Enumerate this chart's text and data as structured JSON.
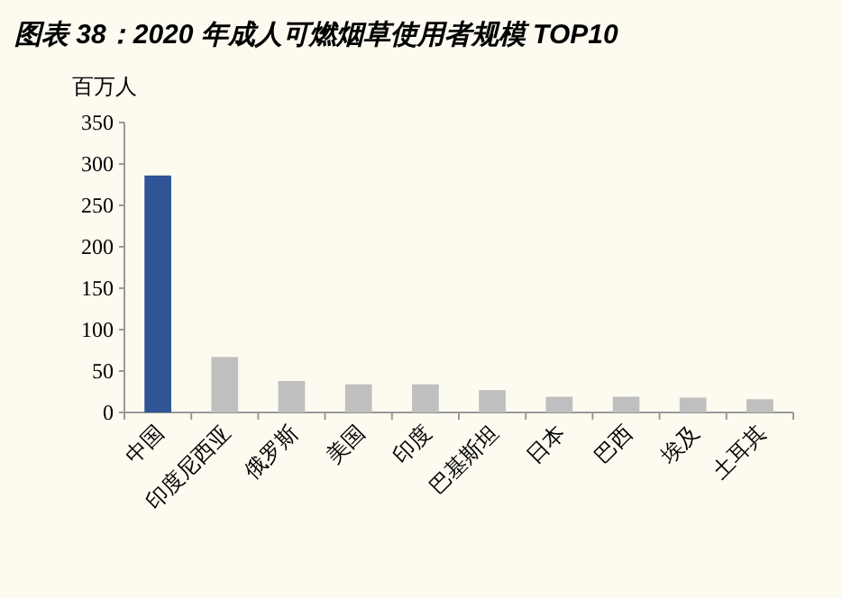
{
  "chart_data": {
    "type": "bar",
    "title": "图表 38：2020 年成人可燃烟草使用者规模 TOP10",
    "ylabel": "百万人",
    "categories": [
      "中国",
      "印度尼西亚",
      "俄罗斯",
      "美国",
      "印度",
      "巴基斯坦",
      "日本",
      "巴西",
      "埃及",
      "土耳其"
    ],
    "values": [
      286,
      67,
      38,
      34,
      34,
      27,
      19,
      19,
      18,
      16
    ],
    "colors": [
      "#2f5597",
      "#bfbfbf",
      "#bfbfbf",
      "#bfbfbf",
      "#bfbfbf",
      "#bfbfbf",
      "#bfbfbf",
      "#bfbfbf",
      "#bfbfbf",
      "#bfbfbf"
    ],
    "ylim": [
      0,
      350
    ],
    "yticks": [
      0,
      50,
      100,
      150,
      200,
      250,
      300,
      350
    ]
  }
}
